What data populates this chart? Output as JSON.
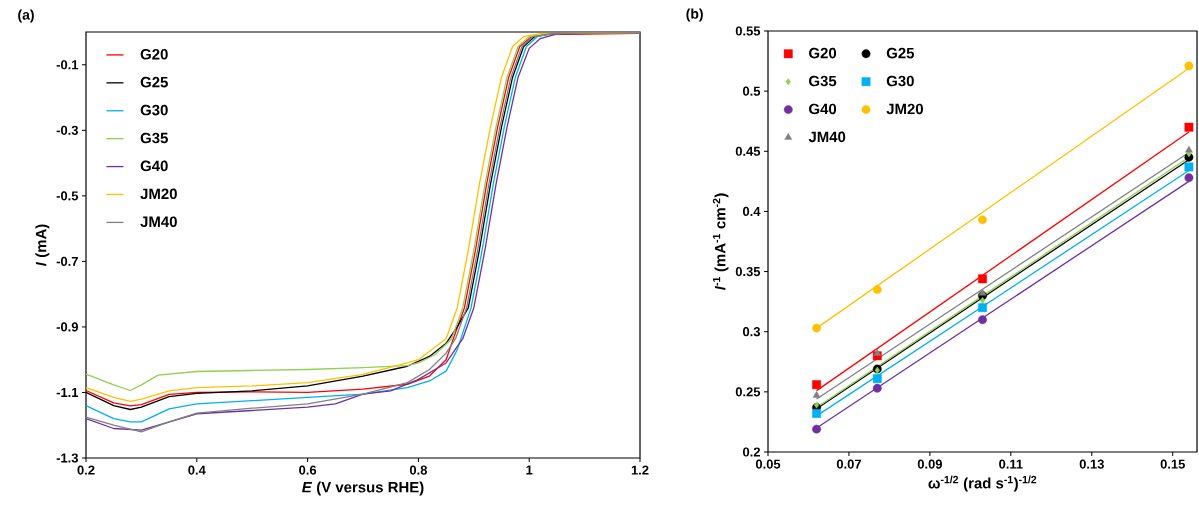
{
  "chart_data": [
    {
      "type": "line",
      "title": "(a)",
      "xlabel": "*E* (V versus RHE)",
      "ylabel": "*I* (mA)",
      "xlim": [
        0.2,
        1.2
      ],
      "ylim": [
        -1.3,
        0
      ],
      "xticks": [
        0.2,
        0.4,
        0.6,
        0.8,
        1,
        1.2
      ],
      "yticks": [
        -1.3,
        -1.1,
        -0.9,
        -0.7,
        -0.5,
        -0.3,
        -0.1
      ],
      "legend": "top left",
      "grid": false,
      "series": [
        {
          "name": "G20",
          "color": "#ff0000",
          "x": [
            0.2,
            0.25,
            0.28,
            0.3,
            0.35,
            0.4,
            0.5,
            0.6,
            0.7,
            0.78,
            0.82,
            0.85,
            0.863,
            0.883,
            0.903,
            0.923,
            0.943,
            0.963,
            0.983,
            1.003,
            1.03,
            1.2
          ],
          "values": [
            -1.094,
            -1.132,
            -1.141,
            -1.137,
            -1.106,
            -1.1,
            -1.098,
            -1.1,
            -1.09,
            -1.075,
            -1.05,
            -1.0,
            -0.936,
            -0.842,
            -0.666,
            -0.466,
            -0.29,
            -0.138,
            -0.044,
            -0.016,
            -0.008,
            -0.004
          ]
        },
        {
          "name": "G25",
          "color": "#000000",
          "x": [
            0.2,
            0.25,
            0.28,
            0.3,
            0.35,
            0.4,
            0.5,
            0.6,
            0.7,
            0.78,
            0.82,
            0.85,
            0.87,
            0.89,
            0.91,
            0.93,
            0.95,
            0.97,
            0.99,
            1.01,
            1.04,
            1.2
          ],
          "values": [
            -1.1,
            -1.14,
            -1.152,
            -1.145,
            -1.113,
            -1.103,
            -1.095,
            -1.08,
            -1.05,
            -1.02,
            -0.99,
            -0.95,
            -0.9,
            -0.842,
            -0.666,
            -0.466,
            -0.29,
            -0.138,
            -0.044,
            -0.014,
            -0.005,
            -0.002
          ]
        },
        {
          "name": "G30",
          "color": "#00b0f0",
          "x": [
            0.2,
            0.25,
            0.28,
            0.3,
            0.35,
            0.4,
            0.5,
            0.6,
            0.7,
            0.78,
            0.82,
            0.85,
            0.87,
            0.895,
            0.915,
            0.935,
            0.955,
            0.975,
            0.995,
            1.015,
            1.04,
            1.2
          ],
          "values": [
            -1.14,
            -1.18,
            -1.19,
            -1.19,
            -1.15,
            -1.135,
            -1.125,
            -1.115,
            -1.105,
            -1.085,
            -1.065,
            -1.035,
            -0.97,
            -0.842,
            -0.666,
            -0.466,
            -0.29,
            -0.138,
            -0.044,
            -0.014,
            -0.005,
            -0.002
          ]
        },
        {
          "name": "G35",
          "color": "#92d050",
          "x": [
            0.2,
            0.25,
            0.28,
            0.3,
            0.33,
            0.4,
            0.5,
            0.6,
            0.7,
            0.78,
            0.8,
            0.83,
            0.86,
            0.88,
            0.9,
            0.92,
            0.94,
            0.96,
            0.98,
            1.0,
            1.04,
            1.2
          ],
          "values": [
            -1.044,
            -1.077,
            -1.094,
            -1.077,
            -1.047,
            -1.036,
            -1.033,
            -1.03,
            -1.024,
            -1.018,
            -1.01,
            -0.985,
            -0.936,
            -0.842,
            -0.666,
            -0.466,
            -0.29,
            -0.138,
            -0.044,
            -0.014,
            -0.005,
            -0.002
          ]
        },
        {
          "name": "G40",
          "color": "#7030a0",
          "x": [
            0.2,
            0.25,
            0.3,
            0.35,
            0.4,
            0.5,
            0.6,
            0.65,
            0.7,
            0.75,
            0.8,
            0.85,
            0.87,
            0.88,
            0.9,
            0.92,
            0.94,
            0.96,
            0.98,
            1.0,
            1.02,
            1.05,
            1.2
          ],
          "values": [
            -1.18,
            -1.21,
            -1.215,
            -1.19,
            -1.165,
            -1.155,
            -1.145,
            -1.135,
            -1.105,
            -1.095,
            -1.06,
            -1.01,
            -0.96,
            -0.936,
            -0.842,
            -0.666,
            -0.466,
            -0.29,
            -0.138,
            -0.05,
            -0.02,
            -0.006,
            -0.002
          ]
        },
        {
          "name": "JM20",
          "color": "#ffc000",
          "x": [
            0.2,
            0.25,
            0.28,
            0.3,
            0.35,
            0.4,
            0.5,
            0.6,
            0.7,
            0.78,
            0.8,
            0.85,
            0.87,
            0.89,
            0.91,
            0.93,
            0.95,
            0.97,
            0.99,
            1.02,
            1.2
          ],
          "values": [
            -1.085,
            -1.115,
            -1.127,
            -1.12,
            -1.095,
            -1.085,
            -1.08,
            -1.07,
            -1.045,
            -1.01,
            -1.0,
            -0.936,
            -0.842,
            -0.666,
            -0.466,
            -0.29,
            -0.138,
            -0.044,
            -0.014,
            -0.005,
            -0.002
          ]
        },
        {
          "name": "JM40",
          "color": "#808080",
          "x": [
            0.2,
            0.25,
            0.3,
            0.35,
            0.4,
            0.5,
            0.6,
            0.7,
            0.78,
            0.82,
            0.85,
            0.867,
            0.887,
            0.907,
            0.927,
            0.947,
            0.967,
            0.987,
            1.007,
            1.04,
            1.2
          ],
          "values": [
            -1.175,
            -1.2,
            -1.22,
            -1.19,
            -1.163,
            -1.148,
            -1.135,
            -1.105,
            -1.07,
            -1.03,
            -0.98,
            -0.936,
            -0.842,
            -0.666,
            -0.466,
            -0.29,
            -0.138,
            -0.044,
            -0.014,
            -0.005,
            -0.002
          ]
        }
      ]
    },
    {
      "type": "scatter",
      "title": "(b)",
      "xlabel": "ω$^{-1/2}$ (rad s$^{-1}$)$^{-1/2}$",
      "ylabel": "*I*$^{-1}$ (mA$^{-1}$ cm$^{-2}$)",
      "xlim": [
        0.05,
        0.156
      ],
      "ylim": [
        0.2,
        0.55
      ],
      "xticks": [
        0.05,
        0.07,
        0.09,
        0.11,
        0.13,
        0.15
      ],
      "yticks": [
        0.2,
        0.25,
        0.3,
        0.35,
        0.4,
        0.45,
        0.5,
        0.55
      ],
      "legend": "top left",
      "grid": false,
      "x": [
        0.062,
        0.077,
        0.103,
        0.154
      ],
      "series": [
        {
          "name": "G20",
          "color": "#ff0000",
          "marker": "square",
          "values": [
            0.256,
            0.28,
            0.344,
            0.47
          ]
        },
        {
          "name": "G25",
          "color": "#000000",
          "marker": "circle",
          "values": [
            0.237,
            0.269,
            0.33,
            0.445
          ]
        },
        {
          "name": "G35",
          "color": "#92d050",
          "marker": "diamond",
          "values": [
            0.239,
            0.268,
            0.326,
            0.448
          ]
        },
        {
          "name": "G30",
          "color": "#00b0f0",
          "marker": "square",
          "values": [
            0.232,
            0.261,
            0.32,
            0.437
          ]
        },
        {
          "name": "G40",
          "color": "#7030a0",
          "marker": "circle",
          "values": [
            0.219,
            0.253,
            0.31,
            0.428
          ]
        },
        {
          "name": "JM20",
          "color": "#ffc000",
          "marker": "circle",
          "values": [
            0.303,
            0.335,
            0.393,
            0.521
          ]
        },
        {
          "name": "JM40",
          "color": "#808080",
          "marker": "triangle",
          "values": [
            0.247,
            0.282,
            0.332,
            0.451
          ]
        },
        {
          "type": "line",
          "color": "#ff0000",
          "x": [
            0.062,
            0.154
          ],
          "values": [
            0.251,
            0.466
          ]
        },
        {
          "type": "line",
          "color": "#000000",
          "x": [
            0.062,
            0.154
          ],
          "values": [
            0.236,
            0.443
          ]
        },
        {
          "type": "line",
          "color": "#92d050",
          "x": [
            0.062,
            0.154
          ],
          "values": [
            0.237,
            0.445
          ]
        },
        {
          "type": "line",
          "color": "#00b0f0",
          "x": [
            0.062,
            0.154
          ],
          "values": [
            0.23,
            0.434
          ]
        },
        {
          "type": "line",
          "color": "#7030a0",
          "x": [
            0.062,
            0.154
          ],
          "values": [
            0.22,
            0.425
          ]
        },
        {
          "type": "line",
          "color": "#ffc000",
          "x": [
            0.062,
            0.154
          ],
          "values": [
            0.303,
            0.519
          ]
        },
        {
          "type": "line",
          "color": "#808080",
          "x": [
            0.062,
            0.154
          ],
          "values": [
            0.244,
            0.449
          ]
        }
      ]
    }
  ]
}
